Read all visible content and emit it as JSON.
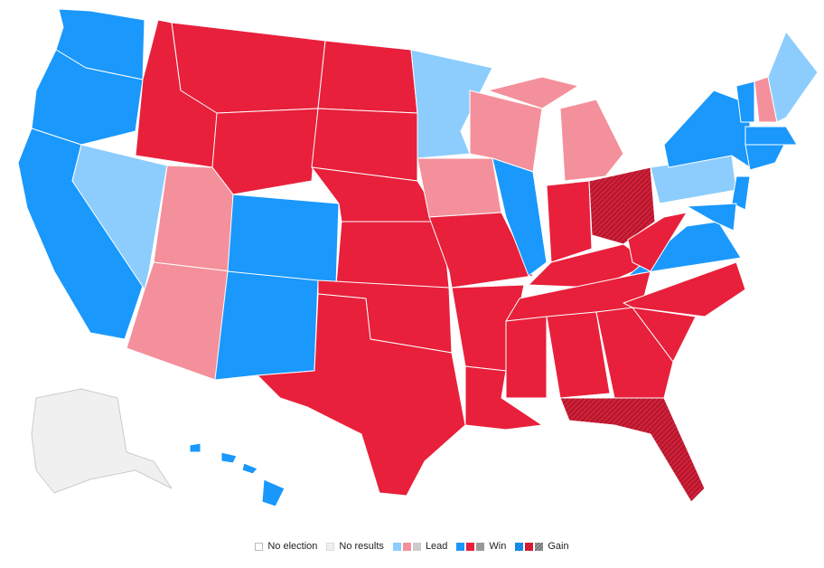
{
  "legend": [
    "No election",
    "No results",
    "Lead",
    "Win",
    "Gain"
  ]
}
